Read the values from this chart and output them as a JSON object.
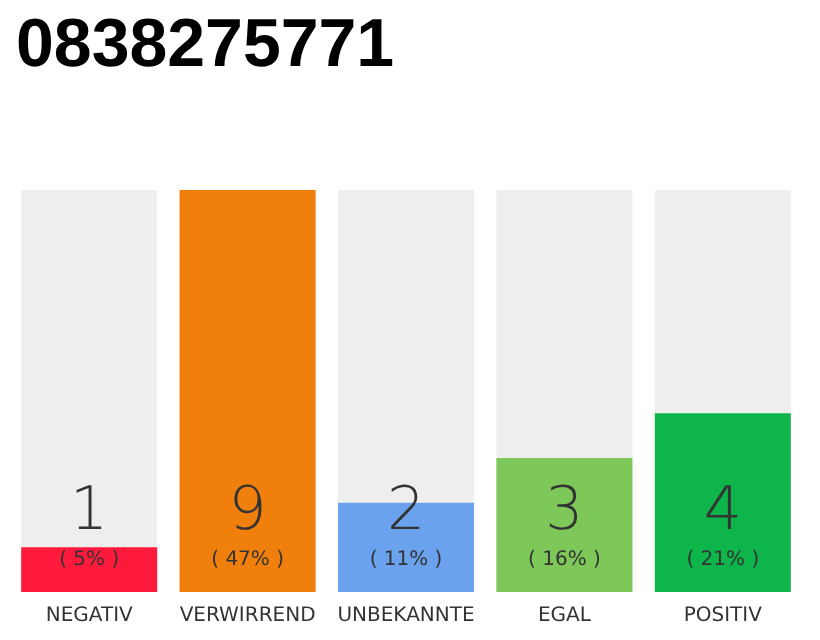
{
  "chart_data": {
    "type": "bar",
    "title": "0838275771",
    "categories": [
      "NEGATIV",
      "VERWIRREND",
      "UNBEKANNTE",
      "EGAL",
      "POSITIV"
    ],
    "values": [
      1,
      9,
      2,
      3,
      4
    ],
    "colors": [
      "#ff1a3c",
      "#f07f0c",
      "#6aa2ee",
      "#7ec85a",
      "#0db54a"
    ],
    "value_labels": [
      "1\n( 5% )",
      "9\n( 47% )",
      "2\n( 11% )",
      "3\n( 16% )",
      "4\n( 21% )"
    ]
  }
}
